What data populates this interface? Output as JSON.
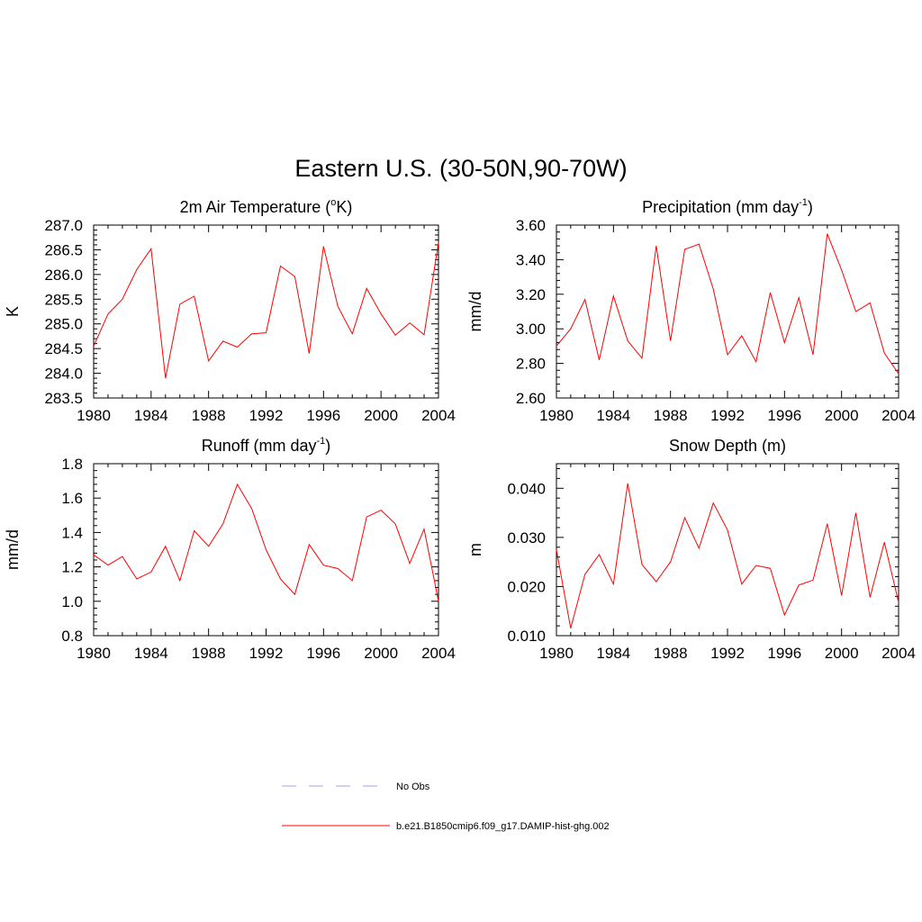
{
  "title": "Eastern U.S. (30-50N,90-70W)",
  "legend": {
    "placement": "bottom-center",
    "entries": [
      {
        "label": "No Obs",
        "color": "#a0a0ff",
        "dash": true
      },
      {
        "label": "b.e21.B1850cmip6.f09_g17.DAMIP-hist-ghg.002",
        "color": "#ff0000",
        "dash": false
      }
    ]
  },
  "chart_data": [
    {
      "type": "line",
      "title": "2m Air Temperature (",
      "title_sup": "o",
      "title_after": "K)",
      "ylabel": "K",
      "xlabel": "",
      "xlim": [
        1980,
        2004
      ],
      "ylim": [
        283.5,
        287.0
      ],
      "xticks": [
        1980,
        1984,
        1988,
        1992,
        1996,
        2000,
        2004
      ],
      "xtick_labels": [
        "1980",
        "1984",
        "1988",
        "1992",
        "1996",
        "2000",
        "2004"
      ],
      "yticks": [
        283.5,
        284.0,
        284.5,
        285.0,
        285.5,
        286.0,
        286.5,
        287.0
      ],
      "ytick_labels": [
        "283.5",
        "284.0",
        "284.5",
        "285.0",
        "285.5",
        "286.0",
        "286.5",
        "287.0"
      ],
      "series": [
        {
          "color": "#ff0000",
          "x": [
            1980,
            1981,
            1982,
            1983,
            1984,
            1985,
            1986,
            1987,
            1988,
            1989,
            1990,
            1991,
            1992,
            1993,
            1994,
            1995,
            1996,
            1997,
            1998,
            1999,
            2000,
            2001,
            2002,
            2003,
            2004
          ],
          "values": [
            284.55,
            285.2,
            285.5,
            286.1,
            286.52,
            283.9,
            285.4,
            285.56,
            284.25,
            284.65,
            284.53,
            284.8,
            284.82,
            286.17,
            285.96,
            284.4,
            286.57,
            285.35,
            284.8,
            285.72,
            285.2,
            284.77,
            285.02,
            284.78,
            286.65
          ]
        }
      ]
    },
    {
      "type": "line",
      "title": "Precipitation (mm day",
      "title_sup": "-1",
      "title_after": ")",
      "ylabel": "mm/d",
      "xlabel": "",
      "xlim": [
        1980,
        2004
      ],
      "ylim": [
        2.6,
        3.6
      ],
      "xticks": [
        1980,
        1984,
        1988,
        1992,
        1996,
        2000,
        2004
      ],
      "xtick_labels": [
        "1980",
        "1984",
        "1988",
        "1992",
        "1996",
        "2000",
        "2004"
      ],
      "yticks": [
        2.6,
        2.8,
        3.0,
        3.2,
        3.4,
        3.6
      ],
      "ytick_labels": [
        "2.60",
        "2.80",
        "3.00",
        "3.20",
        "3.40",
        "3.60"
      ],
      "series": [
        {
          "color": "#ff0000",
          "x": [
            1980,
            1981,
            1982,
            1983,
            1984,
            1985,
            1986,
            1987,
            1988,
            1989,
            1990,
            1991,
            1992,
            1993,
            1994,
            1995,
            1996,
            1997,
            1998,
            1999,
            2000,
            2001,
            2002,
            2003,
            2004
          ],
          "values": [
            2.9,
            3.0,
            3.17,
            2.82,
            3.19,
            2.93,
            2.83,
            3.48,
            2.93,
            3.46,
            3.49,
            3.23,
            2.85,
            2.96,
            2.81,
            3.21,
            2.92,
            3.18,
            2.85,
            3.55,
            3.34,
            3.1,
            3.15,
            2.86,
            2.74
          ]
        }
      ]
    },
    {
      "type": "line",
      "title": "Runoff (mm day",
      "title_sup": "-1",
      "title_after": ")",
      "ylabel": "mm/d",
      "xlabel": "",
      "xlim": [
        1980,
        2004
      ],
      "ylim": [
        0.8,
        1.8
      ],
      "xticks": [
        1980,
        1984,
        1988,
        1992,
        1996,
        2000,
        2004
      ],
      "xtick_labels": [
        "1980",
        "1984",
        "1988",
        "1992",
        "1996",
        "2000",
        "2004"
      ],
      "yticks": [
        0.8,
        1.0,
        1.2,
        1.4,
        1.6,
        1.8
      ],
      "ytick_labels": [
        "0.8",
        "1.0",
        "1.2",
        "1.4",
        "1.6",
        "1.8"
      ],
      "series": [
        {
          "color": "#ff0000",
          "x": [
            1980,
            1981,
            1982,
            1983,
            1984,
            1985,
            1986,
            1987,
            1988,
            1989,
            1990,
            1991,
            1992,
            1993,
            1994,
            1995,
            1996,
            1997,
            1998,
            1999,
            2000,
            2001,
            2002,
            2003,
            2004
          ],
          "values": [
            1.27,
            1.21,
            1.26,
            1.13,
            1.17,
            1.32,
            1.12,
            1.41,
            1.32,
            1.45,
            1.68,
            1.54,
            1.3,
            1.13,
            1.04,
            1.33,
            1.21,
            1.19,
            1.12,
            1.49,
            1.53,
            1.45,
            1.22,
            1.42,
            1.0
          ]
        }
      ]
    },
    {
      "type": "line",
      "title": "Snow Depth (m)",
      "title_sup": "",
      "title_after": "",
      "ylabel": "m",
      "xlabel": "",
      "xlim": [
        1980,
        2004
      ],
      "ylim": [
        0.01,
        0.045
      ],
      "xticks": [
        1980,
        1984,
        1988,
        1992,
        1996,
        2000,
        2004
      ],
      "xtick_labels": [
        "1980",
        "1984",
        "1988",
        "1992",
        "1996",
        "2000",
        "2004"
      ],
      "yticks": [
        0.01,
        0.02,
        0.03,
        0.04
      ],
      "ytick_labels": [
        "0.010",
        "0.020",
        "0.030",
        "0.040"
      ],
      "series": [
        {
          "color": "#ff0000",
          "x": [
            1980,
            1981,
            1982,
            1983,
            1984,
            1985,
            1986,
            1987,
            1988,
            1989,
            1990,
            1991,
            1992,
            1993,
            1994,
            1995,
            1996,
            1997,
            1998,
            1999,
            2000,
            2001,
            2002,
            2003,
            2004
          ],
          "values": [
            0.0275,
            0.0115,
            0.0225,
            0.0265,
            0.0205,
            0.041,
            0.0245,
            0.021,
            0.025,
            0.034,
            0.0278,
            0.037,
            0.0315,
            0.0205,
            0.0243,
            0.0237,
            0.0142,
            0.0203,
            0.0213,
            0.0328,
            0.0182,
            0.035,
            0.0178,
            0.029,
            0.0168
          ]
        }
      ]
    }
  ]
}
